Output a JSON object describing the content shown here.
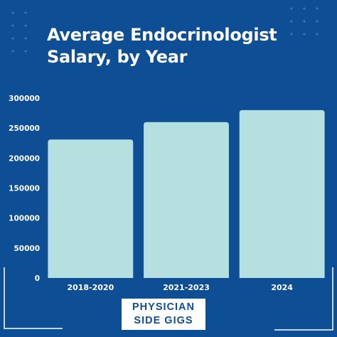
{
  "colors": {
    "background": "#0e4e95",
    "bar": "#b6e0e0",
    "text": "#ffffff",
    "dots": "#3d74b0"
  },
  "brand": {
    "line1": "PHYSICIAN",
    "line2": "SIDE GIGS"
  },
  "chart_data": {
    "type": "bar",
    "title": "Average Endocrinologist Salary, by Year",
    "xlabel": "",
    "ylabel": "",
    "categories": [
      "2018-2020",
      "2021-2023",
      "2024"
    ],
    "values": [
      231000,
      260000,
      280000
    ],
    "ylim": [
      0,
      300000
    ],
    "yticks": [
      0,
      50000,
      100000,
      150000,
      200000,
      250000,
      300000
    ],
    "grid": false,
    "legend": "none"
  }
}
